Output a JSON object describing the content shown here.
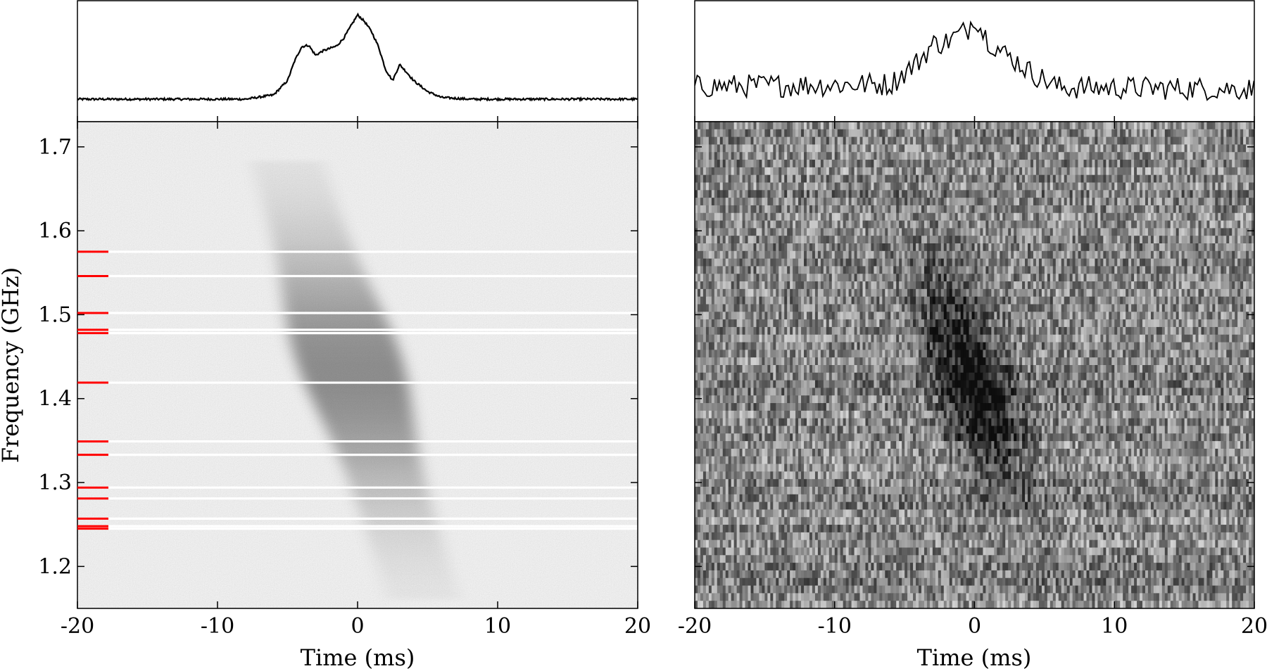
{
  "chart_data": [
    {
      "type": "heatmap",
      "panel": "left",
      "xlabel": "Time (ms)",
      "ylabel": "Frequency (GHz)",
      "xlim": [
        -20,
        20
      ],
      "ylim": [
        1.15,
        1.73
      ],
      "xticks": [
        -20,
        -10,
        0,
        10,
        20
      ],
      "xtick_labels": [
        "-20",
        "-10",
        "0",
        "10",
        "20"
      ],
      "yticks": [
        1.2,
        1.3,
        1.4,
        1.5,
        1.6,
        1.7
      ],
      "ytick_labels": [
        "1.2",
        "1.3",
        "1.4",
        "1.5",
        "1.6",
        "1.7"
      ],
      "colormap": "gray_r",
      "burst_components_ms": [
        {
          "center": -3.7,
          "amplitude": 0.55
        },
        {
          "center": -2.0,
          "amplitude": 0.48
        },
        {
          "center": 0.0,
          "amplitude": 1.0
        },
        {
          "center": 3.0,
          "amplitude": 0.38
        }
      ],
      "burst_drift": {
        "freq_high_ghz": 1.6,
        "time_at_high_ms": -3.5,
        "freq_low_ghz": 1.2,
        "time_at_low_ms": 4.0
      },
      "masked_channels_ghz": [
        1.575,
        1.546,
        1.502,
        1.482,
        1.478,
        1.419,
        1.349,
        1.333,
        1.294,
        1.281,
        1.257,
        1.248,
        1.245
      ],
      "mask_marker_color": "#ff0000",
      "profile": {
        "x_ms": [
          -20,
          -8,
          -6,
          -5,
          -4.5,
          -4,
          -3.5,
          -3,
          -2.5,
          -2,
          -1.5,
          -1,
          -0.5,
          0,
          0.5,
          1,
          1.5,
          2,
          2.5,
          3,
          3.5,
          4,
          5,
          6,
          8,
          20
        ],
        "y": [
          0.0,
          0.0,
          0.05,
          0.22,
          0.45,
          0.62,
          0.64,
          0.52,
          0.57,
          0.6,
          0.63,
          0.72,
          0.86,
          1.0,
          0.92,
          0.8,
          0.62,
          0.35,
          0.22,
          0.41,
          0.32,
          0.22,
          0.09,
          0.02,
          0.0,
          0.0
        ]
      }
    },
    {
      "type": "heatmap",
      "panel": "right",
      "xlabel": "Time (ms)",
      "xlim": [
        -20,
        20
      ],
      "ylim": [
        1.15,
        1.73
      ],
      "xticks": [
        -20,
        -10,
        0,
        10,
        20
      ],
      "xtick_labels": [
        "-20",
        "-10",
        "0",
        "10",
        "20"
      ],
      "colormap": "gray_r",
      "profile": {
        "x_ms": [
          -20,
          -6,
          -4,
          -3,
          -2,
          -1,
          -0.5,
          0,
          0.5,
          1,
          2,
          3,
          4,
          6,
          20
        ],
        "y": [
          0.15,
          0.18,
          0.45,
          0.65,
          0.68,
          0.78,
          0.82,
          1.0,
          0.82,
          0.7,
          0.55,
          0.45,
          0.32,
          0.14,
          0.12
        ]
      }
    }
  ]
}
